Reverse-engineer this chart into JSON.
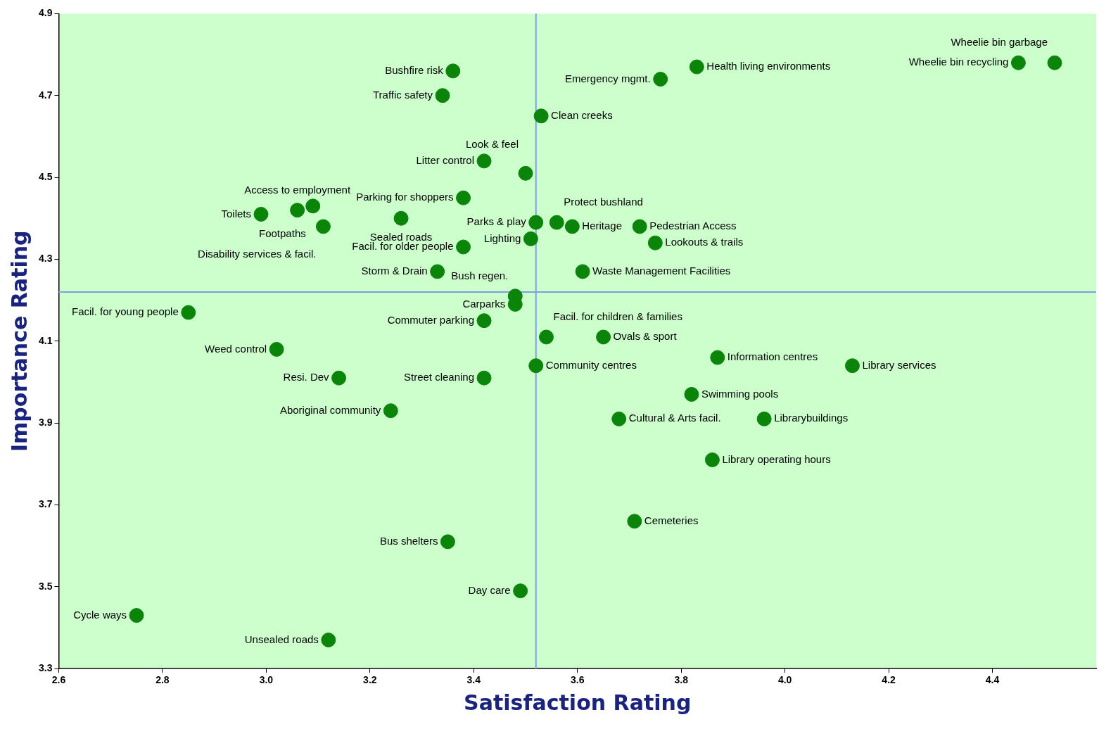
{
  "chart_data": {
    "type": "scatter",
    "xlabel": "Satisfaction Rating",
    "ylabel": "Importance Rating",
    "xlim": [
      2.6,
      4.6
    ],
    "xticks": [
      2.6,
      2.8,
      {
        "value": 3.0,
        "label": "3.0"
      },
      3.2,
      3.4,
      3.6,
      3.8,
      {
        "value": 4.0,
        "label": "4.0"
      },
      4.2,
      4.4
    ],
    "ylim": [
      3.3,
      4.9
    ],
    "yticks": [
      3.3,
      3.5,
      3.7,
      3.9,
      4.1,
      4.3,
      4.5,
      4.7,
      4.9
    ],
    "grid": false,
    "legend": false,
    "marker": "circle",
    "series": [
      {
        "color": "#0a850a",
        "x": [
          4.45,
          4.52,
          3.83,
          3.76,
          3.36,
          3.34,
          3.53,
          3.42,
          3.5,
          3.56,
          3.52,
          3.59,
          3.72,
          3.75,
          3.51,
          3.38,
          3.26,
          3.38,
          3.33,
          3.61,
          2.99,
          3.06,
          3.09,
          3.11,
          3.48,
          3.48,
          2.85,
          3.42,
          3.54,
          3.65,
          3.02,
          3.87,
          4.13,
          3.52,
          3.14,
          3.42,
          3.82,
          3.24,
          3.68,
          3.96,
          3.86,
          3.71,
          3.35,
          3.49,
          2.75,
          3.12
        ],
        "values": [
          4.78,
          4.78,
          4.77,
          4.74,
          4.76,
          4.7,
          4.65,
          4.54,
          4.51,
          4.39,
          4.39,
          4.38,
          4.38,
          4.34,
          4.35,
          4.45,
          4.4,
          4.33,
          4.27,
          4.27,
          4.41,
          4.42,
          4.43,
          4.38,
          4.21,
          4.19,
          4.17,
          4.15,
          4.11,
          4.11,
          4.08,
          4.06,
          4.04,
          4.04,
          4.01,
          4.01,
          3.97,
          3.93,
          3.91,
          3.91,
          3.81,
          3.66,
          3.61,
          3.49,
          3.43,
          3.37
        ]
      }
    ],
    "ref_lines": [
      {
        "axis": "x",
        "value": 3.52,
        "color": "#7f9fe0"
      },
      {
        "axis": "y",
        "value": 4.22,
        "color": "#7f9fe0"
      }
    ],
    "annotations": [
      {
        "text": "Wheelie bin recycling",
        "x": 4.45,
        "y": 4.78
      },
      {
        "text": "Wheelie bin garbage",
        "x": 4.52,
        "y": 4.78
      },
      {
        "text": "Health living environments",
        "x": 3.83,
        "y": 4.77
      },
      {
        "text": "Emergency mgmt.",
        "x": 3.76,
        "y": 4.74
      },
      {
        "text": "Bushfire risk",
        "x": 3.36,
        "y": 4.76
      },
      {
        "text": "Traffic safety",
        "x": 3.34,
        "y": 4.7
      },
      {
        "text": "Clean creeks",
        "x": 3.53,
        "y": 4.65
      },
      {
        "text": "Litter control",
        "x": 3.42,
        "y": 4.54
      },
      {
        "text": "Look & feel",
        "x": 3.5,
        "y": 4.51
      },
      {
        "text": "Protect bushland",
        "x": 3.56,
        "y": 4.39
      },
      {
        "text": "Parks & play",
        "x": 3.52,
        "y": 4.39
      },
      {
        "text": "Heritage",
        "x": 3.59,
        "y": 4.38
      },
      {
        "text": "Pedestrian Access",
        "x": 3.72,
        "y": 4.38
      },
      {
        "text": "Lookouts & trails",
        "x": 3.75,
        "y": 4.34
      },
      {
        "text": "Lighting",
        "x": 3.51,
        "y": 4.35
      },
      {
        "text": "Parking for shoppers",
        "x": 3.38,
        "y": 4.45
      },
      {
        "text": "Sealed roads",
        "x": 3.26,
        "y": 4.4
      },
      {
        "text": "Facil. for older people",
        "x": 3.38,
        "y": 4.33
      },
      {
        "text": "Storm & Drain",
        "x": 3.33,
        "y": 4.27
      },
      {
        "text": "Waste Management Facilities",
        "x": 3.61,
        "y": 4.27
      },
      {
        "text": "Toilets",
        "x": 2.99,
        "y": 4.41
      },
      {
        "text": "Access to employment",
        "x": 3.06,
        "y": 4.42
      },
      {
        "text": "Footpaths",
        "x": 3.09,
        "y": 4.43
      },
      {
        "text": "Disability services & facil.",
        "x": 3.11,
        "y": 4.38
      },
      {
        "text": "Bush regen.",
        "x": 3.48,
        "y": 4.21
      },
      {
        "text": "Carparks",
        "x": 3.48,
        "y": 4.19
      },
      {
        "text": "Facil. for young people",
        "x": 2.85,
        "y": 4.17
      },
      {
        "text": "Commuter parking",
        "x": 3.42,
        "y": 4.15
      },
      {
        "text": "Facil. for children & families",
        "x": 3.54,
        "y": 4.11
      },
      {
        "text": "Ovals & sport",
        "x": 3.65,
        "y": 4.11
      },
      {
        "text": "Weed control",
        "x": 3.02,
        "y": 4.08
      },
      {
        "text": "Information centres",
        "x": 3.87,
        "y": 4.06
      },
      {
        "text": "Library services",
        "x": 4.13,
        "y": 4.04
      },
      {
        "text": "Community centres",
        "x": 3.52,
        "y": 4.04
      },
      {
        "text": "Resi. Dev",
        "x": 3.14,
        "y": 4.01
      },
      {
        "text": "Street cleaning",
        "x": 3.42,
        "y": 4.01
      },
      {
        "text": "Swimming pools",
        "x": 3.82,
        "y": 3.97
      },
      {
        "text": "Aboriginal community",
        "x": 3.24,
        "y": 3.93
      },
      {
        "text": "Cultural & Arts facil.",
        "x": 3.68,
        "y": 3.91
      },
      {
        "text": "Librarybuildings",
        "x": 3.96,
        "y": 3.91
      },
      {
        "text": "Library operating hours",
        "x": 3.86,
        "y": 3.81
      },
      {
        "text": "Cemeteries",
        "x": 3.71,
        "y": 3.66
      },
      {
        "text": "Bus shelters",
        "x": 3.35,
        "y": 3.61
      },
      {
        "text": "Day care",
        "x": 3.49,
        "y": 3.49
      },
      {
        "text": "Cycle ways",
        "x": 2.75,
        "y": 3.43
      },
      {
        "text": "Unsealed roads",
        "x": 3.12,
        "y": 3.37
      }
    ]
  }
}
